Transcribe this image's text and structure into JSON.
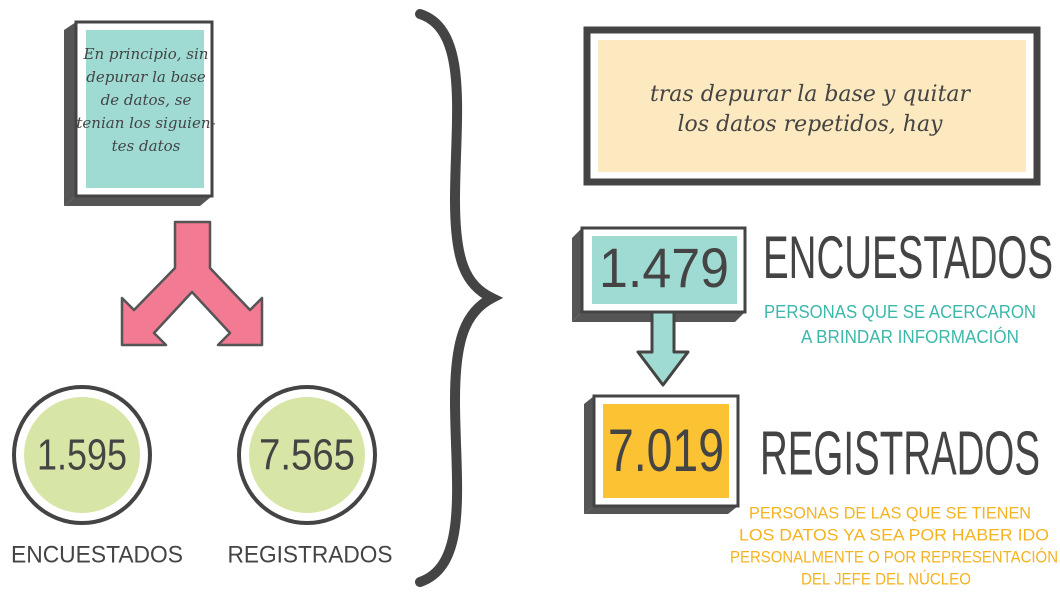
{
  "left_box": {
    "lines": [
      "En principio, sin",
      "depurar la base",
      "de datos, se",
      "tenian los siguien-",
      "tes datos"
    ]
  },
  "left_stats": [
    {
      "value": "1.595",
      "label": "ENCUESTADOS"
    },
    {
      "value": "7.565",
      "label": "REGISTRADOS"
    }
  ],
  "right_box": {
    "lines": [
      "tras depurar la base y quitar",
      "los datos repetidos, hay"
    ]
  },
  "right_stats": [
    {
      "value": "1.479",
      "label": "ENCUESTADOS",
      "description": [
        "PERSONAS QUE SE ACERCARON",
        "A BRINDAR INFORMACIÓN"
      ]
    },
    {
      "value": "7.019",
      "label": "REGISTRADOS",
      "description": [
        "PERSONAS DE LAS QUE SE TIENEN",
        "LOS DATOS YA SEA POR HABER IDO",
        "PERSONALMENTE O POR REPRESENTACIÓN",
        "DEL JEFE DEL NÚCLEO"
      ]
    }
  ]
}
